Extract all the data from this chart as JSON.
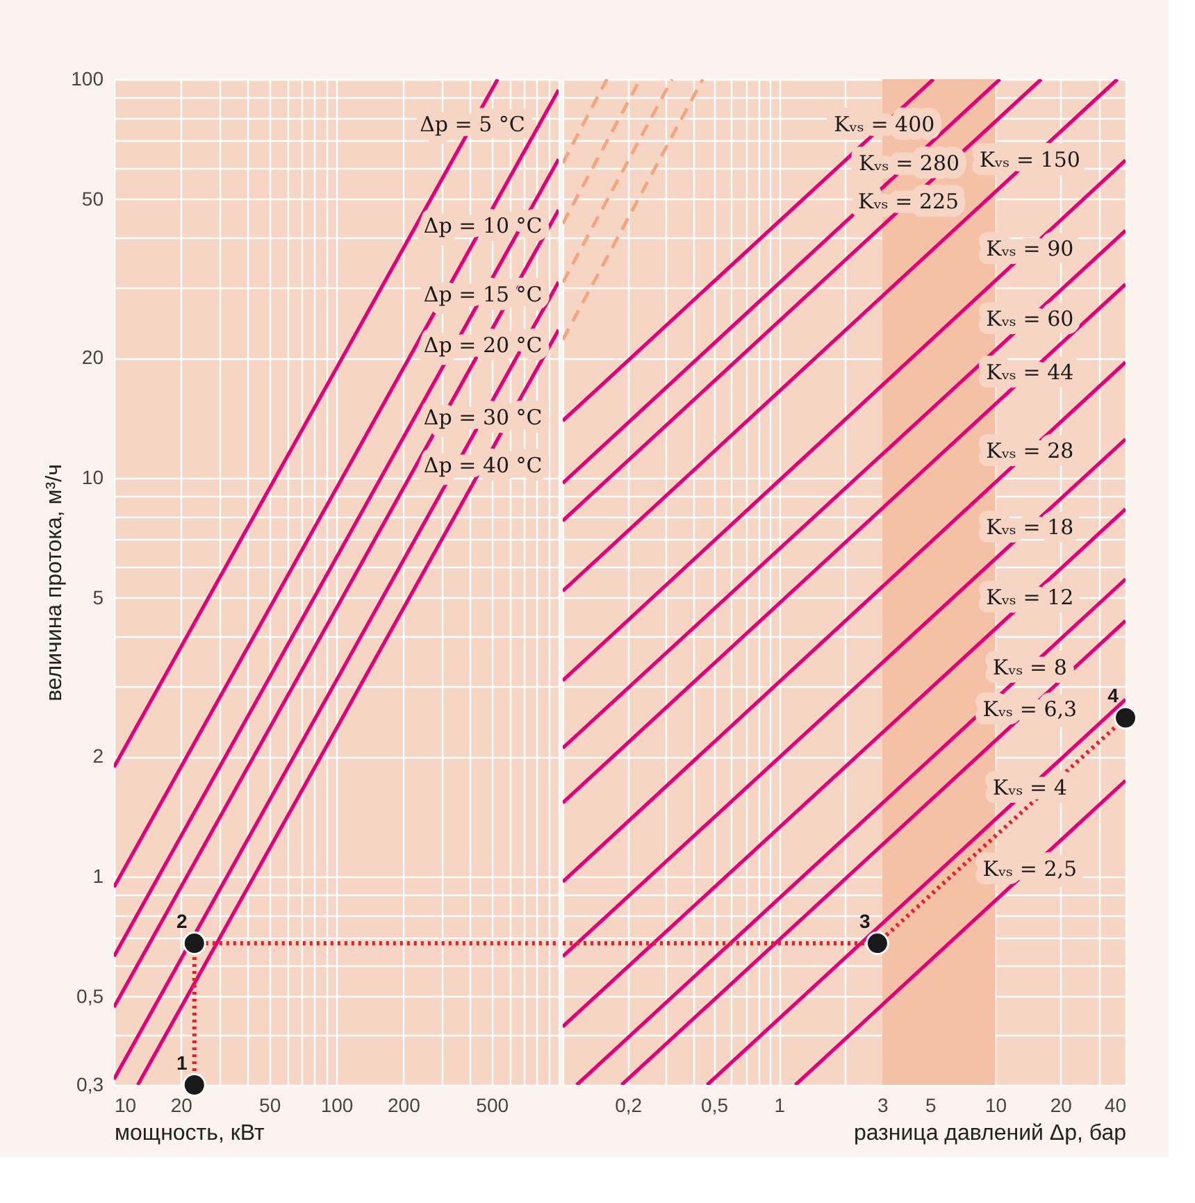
{
  "chart_data": [
    {
      "type": "line",
      "xlabel": "мощность, кВт",
      "ylabel": "величина протока, м³/ч",
      "log": "xy",
      "xlim": [
        10,
        1000
      ],
      "ylim": [
        0.3,
        100
      ],
      "xticks": [
        10,
        20,
        50,
        100,
        200,
        500
      ],
      "yticks": [
        {
          "value": 0.3,
          "label": "0,3"
        },
        {
          "value": 0.5,
          "label": "0,5"
        },
        1,
        2,
        5,
        10,
        20,
        50,
        100
      ],
      "tick_labels": "xy",
      "grid": true,
      "series": [
        {
          "name": "Δp = 5 °C",
          "color": "#e2007a",
          "x": [
            10,
            532
          ],
          "values": [
            1.88,
            100
          ]
        },
        {
          "name": "Δp = 10 °C",
          "color": "#e2007a",
          "x": [
            10,
            1000
          ],
          "values": [
            0.94,
            94
          ]
        },
        {
          "name": "Δp = 15 °C",
          "color": "#e2007a",
          "x": [
            10,
            1000
          ],
          "values": [
            0.63,
            63
          ]
        },
        {
          "name": "Δp = 20 °C",
          "color": "#e2007a",
          "x": [
            10,
            1000
          ],
          "values": [
            0.47,
            47
          ]
        },
        {
          "name": "Δp = 30 °C",
          "color": "#e2007a",
          "x": [
            10,
            1000
          ],
          "values": [
            0.31,
            31
          ]
        },
        {
          "name": "Δp = 40 °C",
          "color": "#e2007a",
          "x": [
            12.8,
            1000
          ],
          "values": [
            0.3,
            23.5
          ]
        },
        {
          "color": "#e8202a",
          "line_style": "dotted",
          "x": [
            23,
            23,
            1000
          ],
          "values": [
            0.3,
            0.68,
            0.68
          ]
        },
        {
          "type": "scatter",
          "marker": "circle",
          "color": "#1a1a1a",
          "x": [
            23,
            23
          ],
          "values": [
            0.3,
            0.68
          ]
        }
      ],
      "annotations": [
        {
          "text": "1",
          "x": 23,
          "y": 0.3
        },
        {
          "text": "2",
          "x": 23,
          "y": 0.68
        }
      ]
    },
    {
      "type": "line",
      "xlabel": "разница давлений Δp, бар",
      "log": "xy",
      "xlim": [
        0.1,
        40
      ],
      "ylim": [
        0.3,
        100
      ],
      "xticks": [
        {
          "value": 0.2,
          "label": "0,2"
        },
        {
          "value": 0.5,
          "label": "0,5"
        },
        1,
        3,
        5,
        10,
        20,
        40
      ],
      "tick_labels": "x",
      "grid": true,
      "bands": [
        {
          "axis": "x",
          "from": 3,
          "to": 10,
          "color": "#f4c0a6"
        }
      ],
      "series": [
        {
          "color": "#f2a57f",
          "line_style": "dashed",
          "x": [
            0.1,
            0.16
          ],
          "values": [
            61.6,
            100
          ]
        },
        {
          "color": "#f2a57f",
          "line_style": "dashed",
          "x": [
            0.1,
            0.228
          ],
          "values": [
            43.4,
            100
          ]
        },
        {
          "color": "#f2a57f",
          "line_style": "dashed",
          "x": [
            0.1,
            0.32
          ],
          "values": [
            30.9,
            100
          ]
        },
        {
          "color": "#f2a57f",
          "line_style": "dashed",
          "x": [
            0.1,
            0.444
          ],
          "values": [
            22.2,
            100
          ]
        },
        {
          "name": "Kᵥₛ = 400",
          "color": "#e2007a",
          "x": [
            0.1,
            5.17
          ],
          "values": [
            13.9,
            100
          ]
        },
        {
          "name": "Kᵥₛ = 280",
          "color": "#e2007a",
          "x": [
            0.1,
            10.5
          ],
          "values": [
            9.7,
            100
          ]
        },
        {
          "name": "Kᵥₛ = 225",
          "color": "#e2007a",
          "x": [
            0.1,
            16.3
          ],
          "values": [
            7.8,
            100
          ]
        },
        {
          "name": "Kᵥₛ = 150",
          "color": "#e2007a",
          "x": [
            0.1,
            36.7
          ],
          "values": [
            5.2,
            100
          ]
        },
        {
          "name": "Kᵥₛ = 90",
          "color": "#e2007a",
          "x": [
            0.1,
            40
          ],
          "values": [
            3.1,
            62.6
          ]
        },
        {
          "name": "Kᵥₛ = 60",
          "color": "#e2007a",
          "x": [
            0.1,
            40
          ],
          "values": [
            2.1,
            41.7
          ]
        },
        {
          "name": "Kᵥₛ = 44",
          "color": "#e2007a",
          "x": [
            0.1,
            40
          ],
          "values": [
            1.53,
            30.6
          ]
        },
        {
          "name": "Kᵥₛ = 28",
          "color": "#e2007a",
          "x": [
            0.1,
            40
          ],
          "values": [
            0.97,
            19.5
          ]
        },
        {
          "name": "Kᵥₛ = 18",
          "color": "#e2007a",
          "x": [
            0.1,
            40
          ],
          "values": [
            0.63,
            12.5
          ]
        },
        {
          "name": "Kᵥₛ = 12",
          "color": "#e2007a",
          "x": [
            0.1,
            40
          ],
          "values": [
            0.42,
            8.35
          ]
        },
        {
          "name": "Kᵥₛ = 8",
          "color": "#e2007a",
          "x": [
            0.116,
            40
          ],
          "values": [
            0.3,
            5.57
          ]
        },
        {
          "name": "Kᵥₛ = 6,3",
          "color": "#e2007a",
          "x": [
            0.187,
            40
          ],
          "values": [
            0.3,
            4.38
          ]
        },
        {
          "name": "Kᵥₛ = 4",
          "color": "#e2007a",
          "x": [
            0.465,
            40
          ],
          "values": [
            0.3,
            2.78
          ]
        },
        {
          "name": "Kᵥₛ = 2,5",
          "color": "#e2007a",
          "x": [
            1.19,
            40
          ],
          "values": [
            0.3,
            1.74
          ]
        },
        {
          "color": "#e8202a",
          "line_style": "dotted",
          "x": [
            0.1,
            2.85,
            40
          ],
          "values": [
            0.68,
            0.68,
            2.5
          ]
        },
        {
          "type": "scatter",
          "marker": "circle",
          "color": "#1a1a1a",
          "x": [
            2.85,
            40
          ],
          "values": [
            0.68,
            2.5
          ]
        }
      ],
      "annotations": [
        {
          "text": "3",
          "x": 2.85,
          "y": 0.68
        },
        {
          "text": "4",
          "x": 40,
          "y": 2.5
        }
      ]
    }
  ]
}
